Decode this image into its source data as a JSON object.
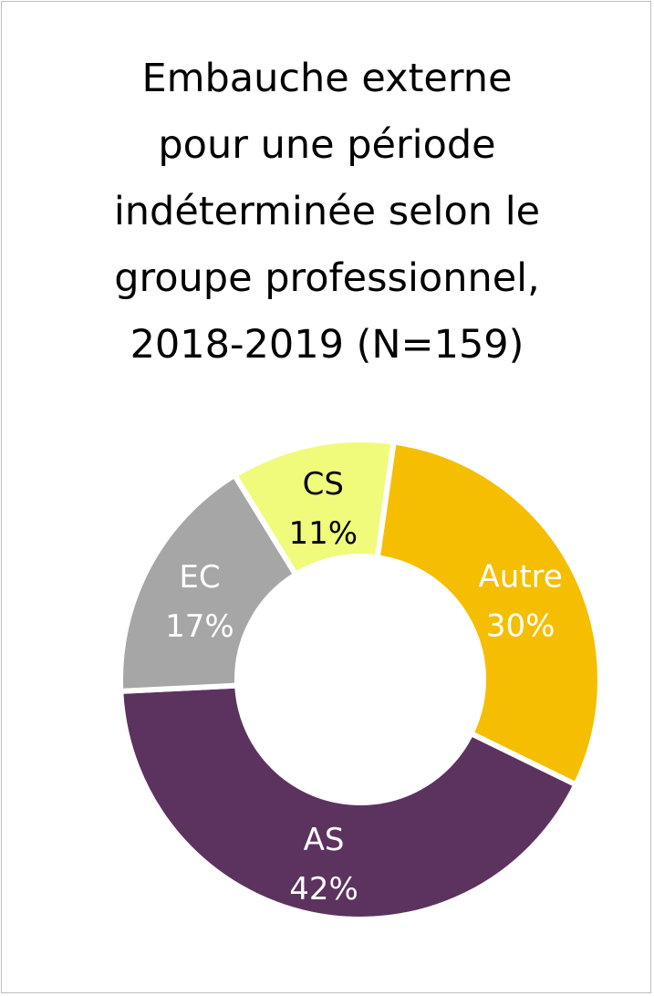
{
  "chart_data": {
    "type": "pie",
    "variant": "donut",
    "title_lines": [
      "Embauche externe",
      "pour une période",
      "indéterminée selon le",
      "groupe professionnel,",
      "2018-2019 (N=159)"
    ],
    "slices": [
      {
        "category": "Autre",
        "value": 30,
        "value_label": "30%",
        "color": "#f5be00",
        "label_color": "#ffffff"
      },
      {
        "category": "AS",
        "value": 42,
        "value_label": "42%",
        "color": "#5c325f",
        "label_color": "#ffffff"
      },
      {
        "category": "EC",
        "value": 17,
        "value_label": "17%",
        "color": "#a6a6a6",
        "label_color": "#ffffff"
      },
      {
        "category": "CS",
        "value": 11,
        "value_label": "11%",
        "color": "#f0fb7c",
        "label_color": "#000000"
      }
    ],
    "legend": "none"
  }
}
